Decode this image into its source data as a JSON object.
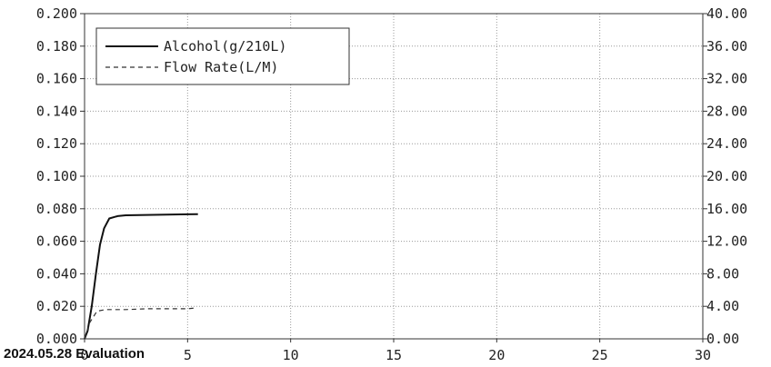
{
  "caption": "2024.05.28 Evaluation",
  "chart_data": {
    "type": "line",
    "title": "",
    "xlabel": "",
    "ylabel": "",
    "y2label": "",
    "xlim": [
      0,
      30
    ],
    "ylim": [
      0,
      0.2
    ],
    "y2lim": [
      0,
      40
    ],
    "grid": true,
    "legend_position": "top-left",
    "x_ticks": [
      "0",
      "5",
      "10",
      "15",
      "20",
      "25",
      "30"
    ],
    "y_ticks": [
      "0.000",
      "0.020",
      "0.040",
      "0.060",
      "0.080",
      "0.100",
      "0.120",
      "0.140",
      "0.160",
      "0.180",
      "0.200"
    ],
    "y2_ticks": [
      "0.00",
      "4.00",
      "8.00",
      "12.00",
      "16.00",
      "20.00",
      "24.00",
      "28.00",
      "32.00",
      "36.00",
      "40.00"
    ],
    "series": [
      {
        "name": "Alcohol(g/210L)",
        "axis": "left",
        "style": "solid",
        "x": [
          0.0,
          0.15,
          0.35,
          0.55,
          0.75,
          0.95,
          1.2,
          1.6,
          2.0,
          3.0,
          4.0,
          5.0,
          5.5
        ],
        "y": [
          0.0,
          0.005,
          0.02,
          0.04,
          0.058,
          0.068,
          0.074,
          0.0755,
          0.076,
          0.0762,
          0.0764,
          0.0766,
          0.0767
        ]
      },
      {
        "name": "Flow Rate(L/M)",
        "axis": "right",
        "style": "dashed",
        "x": [
          0.0,
          0.25,
          0.6,
          1.0,
          2.0,
          3.0,
          4.0,
          5.0,
          5.4
        ],
        "y": [
          0.0,
          2.0,
          3.4,
          3.6,
          3.6,
          3.7,
          3.7,
          3.7,
          3.8
        ]
      }
    ]
  }
}
